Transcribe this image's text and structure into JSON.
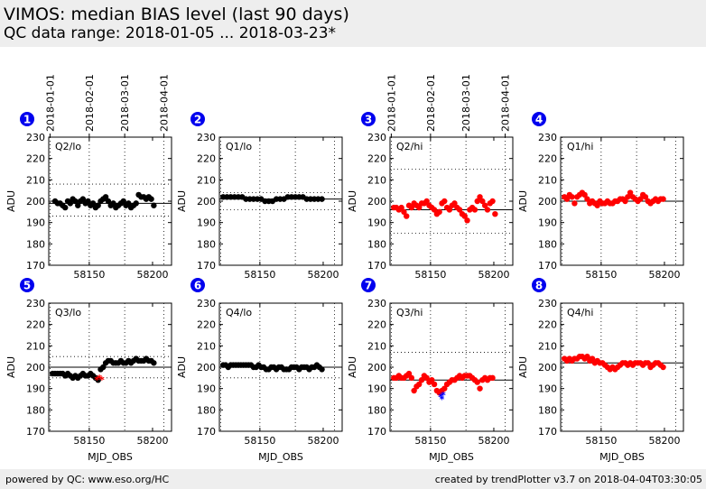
{
  "header": {
    "title": "VIMOS: median BIAS level (last 90 days)",
    "subtitle": "QC data range: 2018-01-05 ... 2018-03-23*"
  },
  "footer": {
    "left": "powered by QC: www.eso.org/HC",
    "right": "created by trendPlotter v3.7 on 2018-04-04T03:30:05"
  },
  "colors": {
    "black": "#000000",
    "red": "#ff0000",
    "blue": "#0000ff",
    "badge": "#0000ee"
  },
  "chart_data": {
    "type": "scatter",
    "xlabel": "MJD_OBS",
    "ylabel": "ADU",
    "xlim": [
      58118,
      58215
    ],
    "ylim": [
      170,
      230
    ],
    "x_ticks": [
      58150,
      58200
    ],
    "y_ticks": [
      170,
      180,
      190,
      200,
      210,
      220,
      230
    ],
    "date_ticks": [
      {
        "label": "2018-01-01",
        "mjd": 58119
      },
      {
        "label": "2018-02-01",
        "mjd": 58150
      },
      {
        "label": "2018-03-01",
        "mjd": 58178
      },
      {
        "label": "2018-04-01",
        "mjd": 58209
      }
    ],
    "panels": [
      {
        "id": "1",
        "label": "Q2/lo",
        "color": "#000000",
        "ref": 199,
        "ref_lines": [
          208,
          193
        ],
        "x": [
          58123,
          58125,
          58127,
          58129,
          58131,
          58133,
          58135,
          58137,
          58139,
          58141,
          58143,
          58145,
          58147,
          58149,
          58151,
          58153,
          58155,
          58157,
          58159,
          58161,
          58163,
          58165,
          58167,
          58169,
          58171,
          58173,
          58175,
          58177,
          58179,
          58181,
          58183,
          58185,
          58187,
          58189,
          58191,
          58193,
          58195,
          58197,
          58199,
          58201
        ],
        "y": [
          200,
          199,
          199,
          198,
          197,
          200,
          199,
          201,
          200,
          198,
          200,
          201,
          199,
          200,
          198,
          199,
          197,
          198,
          200,
          201,
          202,
          200,
          198,
          199,
          197,
          198,
          199,
          200,
          198,
          199,
          197,
          198,
          199,
          203,
          202,
          202,
          201,
          202,
          201,
          198
        ]
      },
      {
        "id": "2",
        "label": "Q1/lo",
        "color": "#000000",
        "ref": 201,
        "ref_lines": [
          204,
          196
        ],
        "x": [
          58121,
          58124,
          58127,
          58130,
          58133,
          58136,
          58139,
          58142,
          58145,
          58148,
          58151,
          58154,
          58157,
          58160,
          58163,
          58166,
          58169,
          58172,
          58175,
          58178,
          58181,
          58184,
          58187,
          58190,
          58193,
          58196,
          58199
        ],
        "y": [
          202,
          202,
          202,
          202,
          202,
          202,
          201,
          201,
          201,
          201,
          201,
          200,
          200,
          200,
          201,
          201,
          201,
          202,
          202,
          202,
          202,
          202,
          201,
          201,
          201,
          201,
          201
        ]
      },
      {
        "id": "3",
        "label": "Q2/hi",
        "color": "#ff0000",
        "ref": 196,
        "ref_lines": [
          215,
          185
        ],
        "x": [
          58121,
          58123,
          58125,
          58127,
          58129,
          58131,
          58133,
          58135,
          58137,
          58139,
          58141,
          58143,
          58145,
          58147,
          58149,
          58151,
          58153,
          58155,
          58157,
          58159,
          58161,
          58163,
          58165,
          58167,
          58169,
          58171,
          58173,
          58175,
          58177,
          58179,
          58181,
          58183,
          58185,
          58187,
          58189,
          58191,
          58193,
          58195,
          58197,
          58199,
          58201
        ],
        "y": [
          197,
          197,
          196,
          197,
          195,
          193,
          198,
          197,
          199,
          198,
          197,
          199,
          199,
          200,
          198,
          197,
          196,
          194,
          195,
          199,
          200,
          197,
          196,
          198,
          199,
          197,
          196,
          194,
          193,
          191,
          196,
          197,
          196,
          200,
          202,
          200,
          198,
          196,
          199,
          200,
          194
        ]
      },
      {
        "id": "4",
        "label": "Q1/hi",
        "color": "#ff0000",
        "ref": 200,
        "ref_lines": [],
        "x": [
          58121,
          58123,
          58125,
          58127,
          58129,
          58131,
          58133,
          58135,
          58137,
          58139,
          58141,
          58143,
          58145,
          58147,
          58149,
          58151,
          58153,
          58155,
          58157,
          58159,
          58161,
          58163,
          58165,
          58167,
          58169,
          58171,
          58173,
          58175,
          58177,
          58179,
          58181,
          58183,
          58185,
          58187,
          58189,
          58191,
          58193,
          58195,
          58197,
          58199
        ],
        "y": [
          202,
          201,
          203,
          202,
          199,
          202,
          203,
          204,
          203,
          201,
          199,
          200,
          199,
          198,
          200,
          199,
          199,
          200,
          199,
          199,
          200,
          200,
          201,
          201,
          200,
          202,
          204,
          202,
          201,
          200,
          201,
          203,
          202,
          200,
          199,
          200,
          201,
          200,
          201,
          201
        ]
      },
      {
        "id": "5",
        "label": "Q3/lo",
        "color": "#000000",
        "ref": 200,
        "ref_lines": [
          205,
          195
        ],
        "x": [
          58121,
          58123,
          58125,
          58127,
          58129,
          58131,
          58133,
          58135,
          58137,
          58139,
          58141,
          58143,
          58145,
          58147,
          58149,
          58151,
          58153,
          58155,
          58157,
          58159,
          58161,
          58163,
          58165,
          58167,
          58169,
          58171,
          58173,
          58175,
          58177,
          58179,
          58181,
          58183,
          58185,
          58187,
          58189,
          58191,
          58193,
          58195,
          58197,
          58199,
          58201
        ],
        "y": [
          197,
          197,
          197,
          197,
          197,
          196,
          197,
          196,
          195,
          196,
          195,
          196,
          197,
          196,
          196,
          197,
          196,
          195,
          194,
          199,
          200,
          202,
          203,
          203,
          202,
          202,
          202,
          203,
          202,
          202,
          203,
          202,
          203,
          204,
          203,
          203,
          203,
          204,
          203,
          203,
          202
        ],
        "extra": {
          "color": "#ff0000",
          "x": [
            58156,
            58158,
            58160
          ],
          "y": [
            194,
            195,
            194
          ]
        }
      },
      {
        "id": "6",
        "label": "Q4/lo",
        "color": "#000000",
        "ref": 200,
        "ref_lines": [
          195
        ],
        "x": [
          58121,
          58123,
          58125,
          58127,
          58129,
          58131,
          58133,
          58135,
          58137,
          58139,
          58141,
          58143,
          58145,
          58147,
          58149,
          58151,
          58153,
          58155,
          58157,
          58159,
          58161,
          58163,
          58165,
          58167,
          58169,
          58171,
          58173,
          58175,
          58177,
          58179,
          58181,
          58183,
          58185,
          58187,
          58189,
          58191,
          58193,
          58195,
          58197,
          58199
        ],
        "y": [
          201,
          201,
          200,
          201,
          201,
          201,
          201,
          201,
          201,
          201,
          201,
          201,
          200,
          200,
          201,
          200,
          200,
          199,
          199,
          200,
          200,
          199,
          200,
          200,
          199,
          199,
          199,
          200,
          200,
          200,
          199,
          200,
          200,
          200,
          199,
          200,
          200,
          201,
          200,
          199
        ]
      },
      {
        "id": "7",
        "label": "Q3/hi",
        "color": "#ff0000",
        "ref": 194,
        "ref_lines": [
          207
        ],
        "x": [
          58121,
          58123,
          58125,
          58127,
          58129,
          58131,
          58133,
          58135,
          58137,
          58139,
          58141,
          58143,
          58145,
          58147,
          58149,
          58151,
          58153,
          58155,
          58157,
          58159,
          58161,
          58163,
          58165,
          58167,
          58169,
          58171,
          58173,
          58175,
          58177,
          58179,
          58181,
          58183,
          58185,
          58187,
          58189,
          58191,
          58193,
          58195,
          58197,
          58199
        ],
        "y": [
          195,
          195,
          196,
          195,
          195,
          196,
          197,
          195,
          189,
          191,
          192,
          194,
          196,
          195,
          193,
          194,
          192,
          189,
          188,
          189,
          190,
          192,
          193,
          194,
          194,
          195,
          196,
          195,
          196,
          196,
          196,
          195,
          194,
          193,
          190,
          194,
          195,
          194,
          195,
          195
        ],
        "extra": {
          "color": "#0000ff",
          "x": [
            58158,
            58159,
            58160
          ],
          "y": [
            186,
            185,
            187
          ]
        }
      },
      {
        "id": "8",
        "label": "Q4/hi",
        "color": "#ff0000",
        "ref": 202,
        "ref_lines": [],
        "x": [
          58121,
          58123,
          58125,
          58127,
          58129,
          58131,
          58133,
          58135,
          58137,
          58139,
          58141,
          58143,
          58145,
          58147,
          58149,
          58151,
          58153,
          58155,
          58157,
          58159,
          58161,
          58163,
          58165,
          58167,
          58169,
          58171,
          58173,
          58175,
          58177,
          58179,
          58181,
          58183,
          58185,
          58187,
          58189,
          58191,
          58193,
          58195,
          58197,
          58199
        ],
        "y": [
          204,
          203,
          204,
          203,
          204,
          204,
          205,
          205,
          204,
          205,
          203,
          204,
          202,
          203,
          202,
          202,
          201,
          200,
          199,
          200,
          199,
          200,
          201,
          202,
          202,
          201,
          202,
          201,
          202,
          202,
          202,
          201,
          202,
          202,
          200,
          201,
          202,
          202,
          201,
          200
        ]
      }
    ]
  }
}
